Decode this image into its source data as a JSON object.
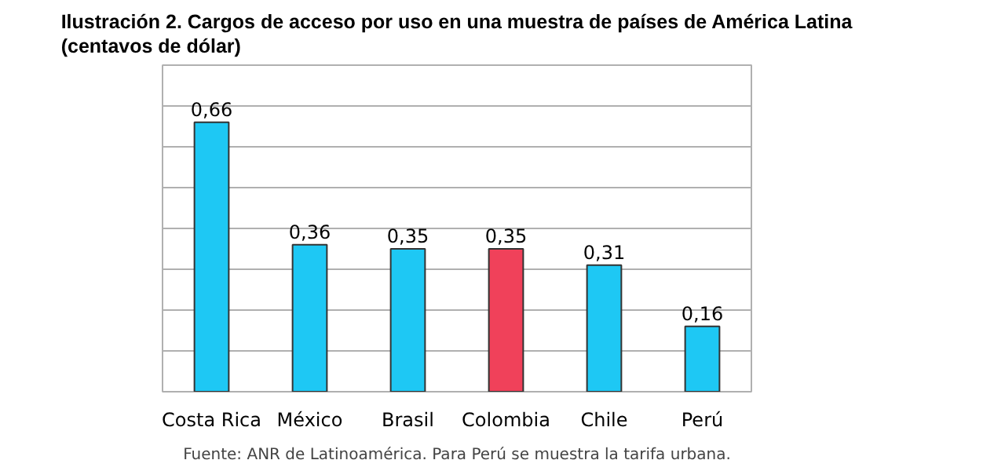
{
  "chart_data": {
    "type": "bar",
    "title": "Ilustración 2. Cargos de acceso por uso en una muestra de países de América Latina\n(centavos de dólar)",
    "categories": [
      "Costa Rica",
      "México",
      "Brasil",
      "Colombia",
      "Chile",
      "Perú"
    ],
    "values": [
      0.66,
      0.36,
      0.35,
      0.35,
      0.31,
      0.16
    ],
    "value_labels": [
      "0,66",
      "0,36",
      "0,35",
      "0,35",
      "0,31",
      "0,16"
    ],
    "colors": [
      "#1ec8f4",
      "#1ec8f4",
      "#1ec8f4",
      "#f0415a",
      "#1ec8f4",
      "#1ec8f4"
    ],
    "ylim": [
      0,
      0.8
    ],
    "yticks": [
      {
        "value": 0.1,
        "label": null
      },
      {
        "value": 0.2,
        "label": null
      },
      {
        "value": 0.3,
        "label": null
      },
      {
        "value": 0.4,
        "label": null
      },
      {
        "value": 0.5,
        "label": null
      },
      {
        "value": 0.6,
        "label": null
      },
      {
        "value": 0.7,
        "label": null
      }
    ],
    "grid": "y",
    "tick_labels": "x",
    "annotations": [
      "Fuente: ANR de Latinoamérica. Para Perú se muestra la tarifa urbana."
    ]
  }
}
